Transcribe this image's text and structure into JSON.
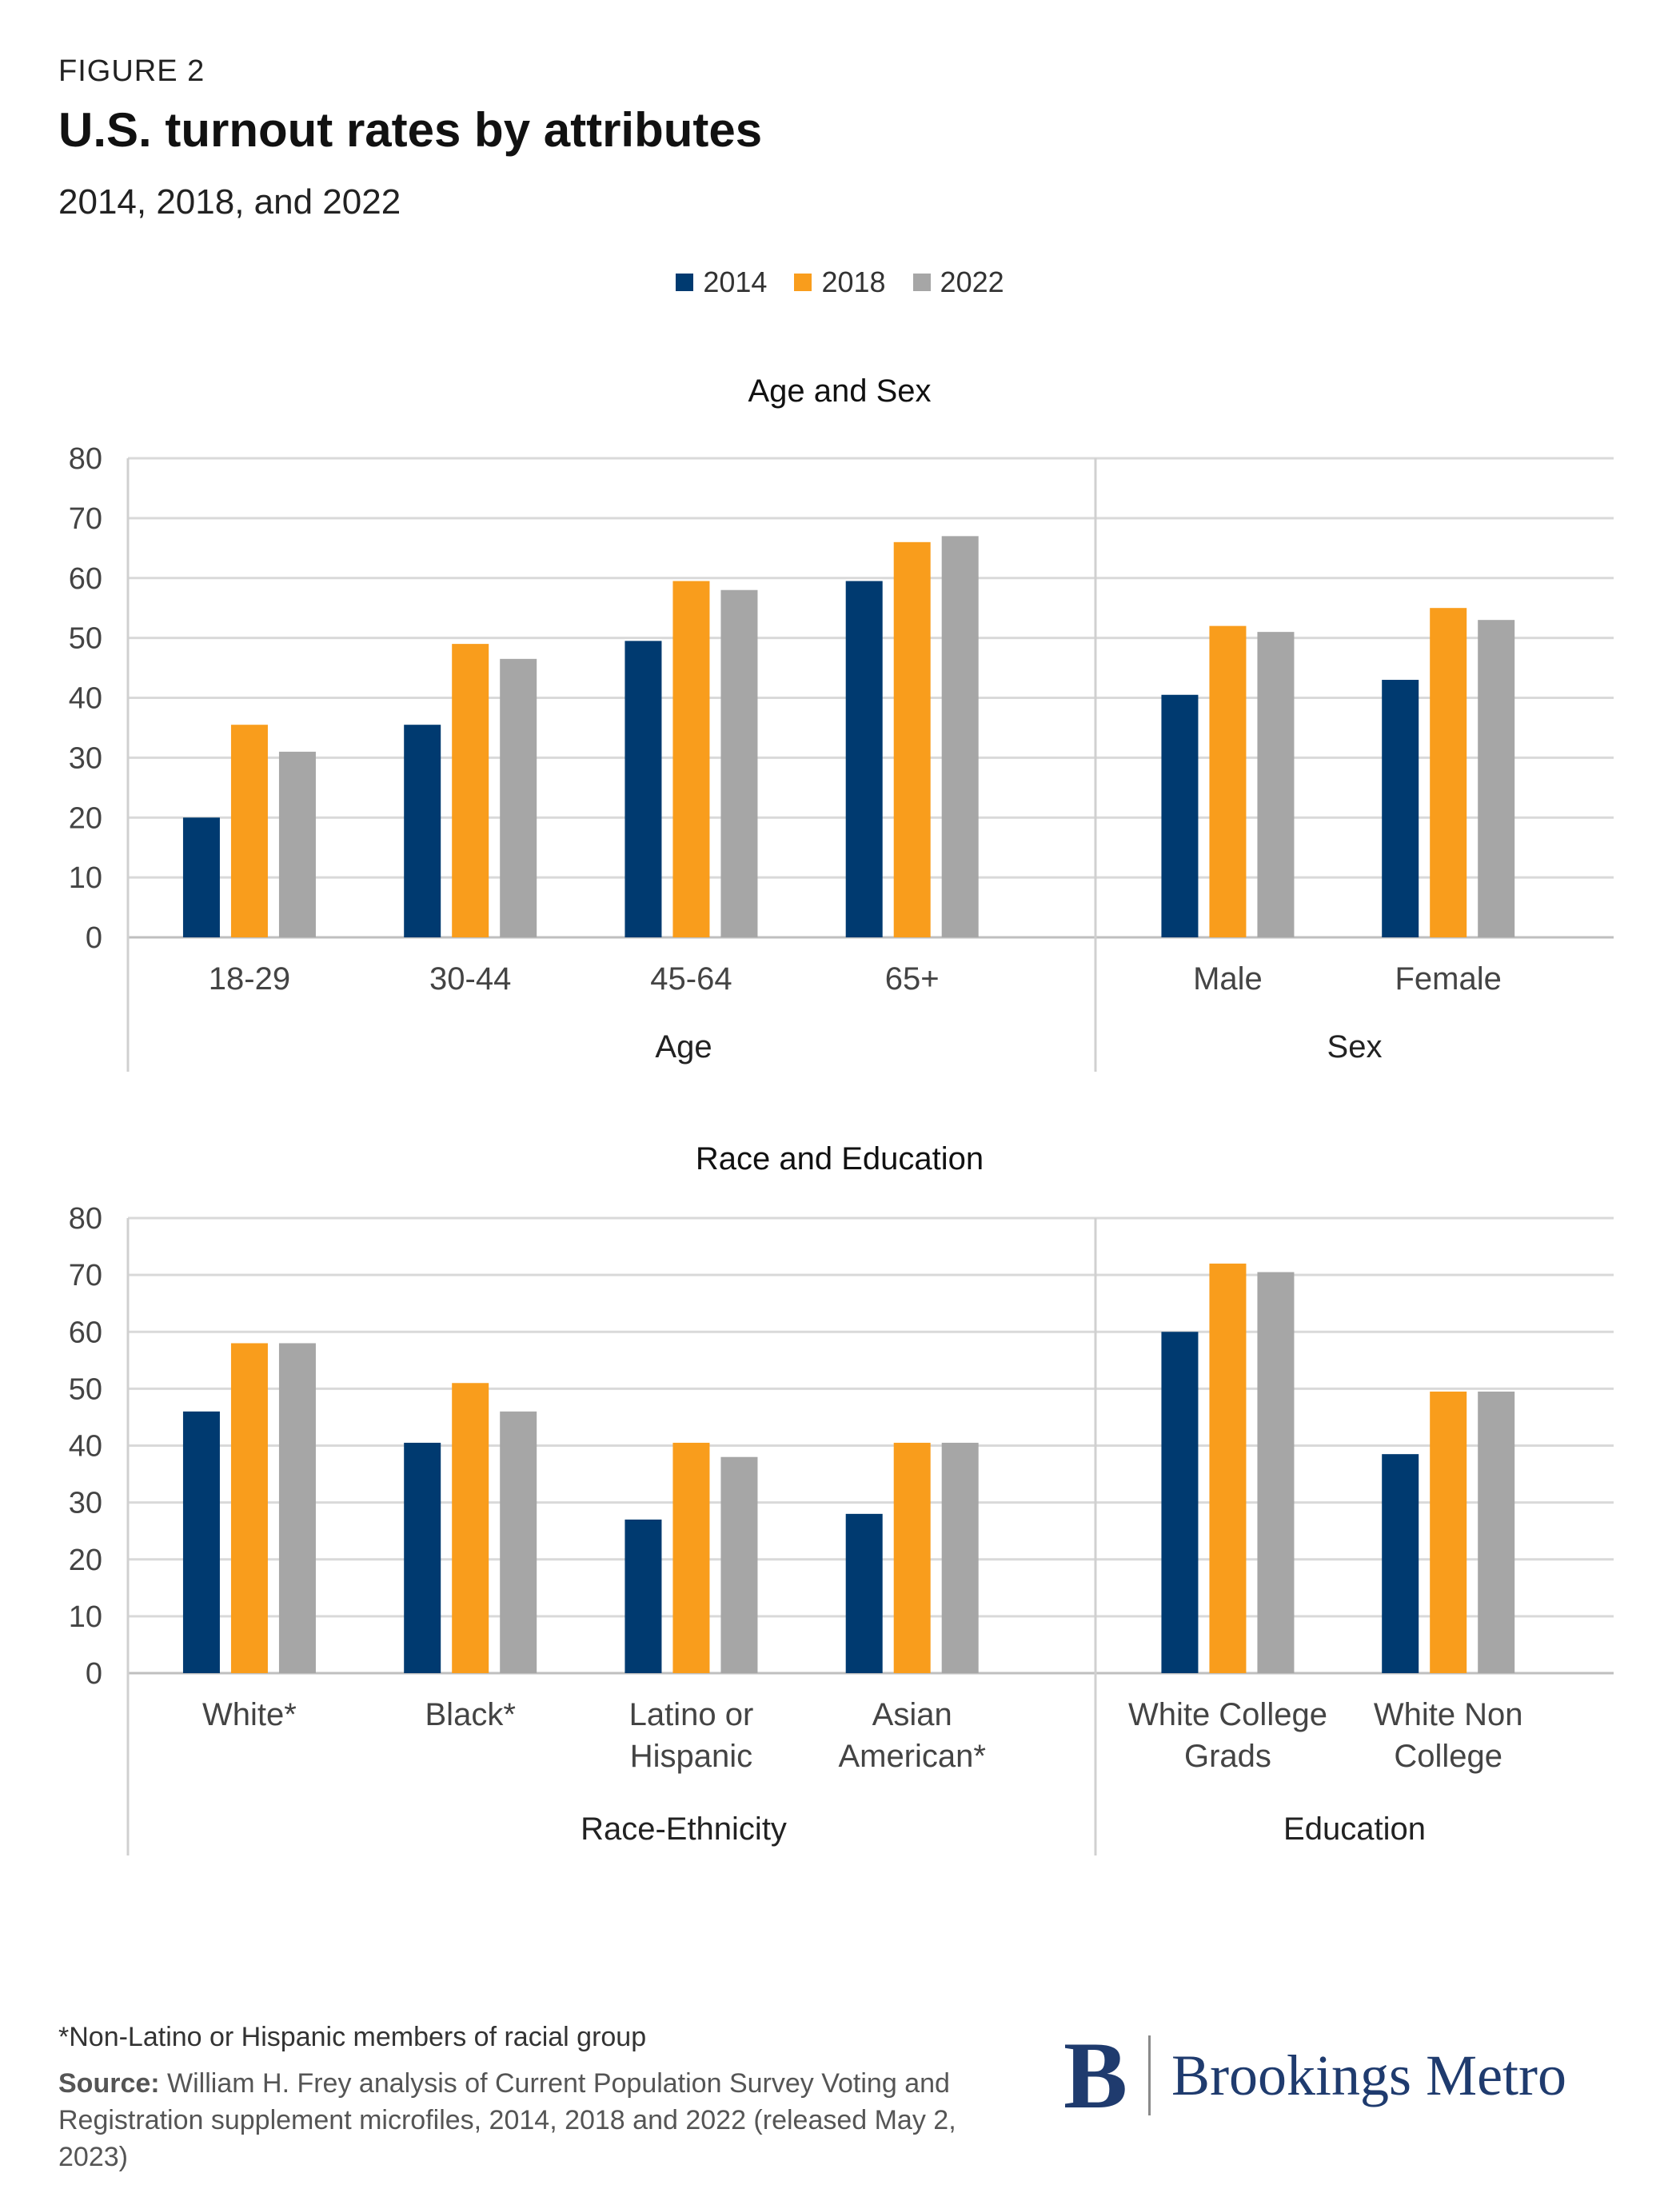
{
  "header": {
    "eyebrow": "FIGURE 2",
    "title": "U.S. turnout rates by attributes",
    "subtitle": "2014, 2018, and 2022"
  },
  "legend": [
    {
      "label": "2014",
      "color": "#003a70"
    },
    {
      "label": "2018",
      "color": "#f99d1c"
    },
    {
      "label": "2022",
      "color": "#a6a6a6"
    }
  ],
  "chart_data": [
    {
      "type": "bar",
      "title": "Age and Sex",
      "ylim": [
        0,
        80
      ],
      "yticks": [
        "0",
        "10",
        "20",
        "30",
        "40",
        "50",
        "60",
        "70",
        "80"
      ],
      "groups": [
        {
          "label": "Age",
          "categories": [
            "18-29",
            "30-44",
            "45-64",
            "65+"
          ]
        },
        {
          "label": "Sex",
          "categories": [
            "Male",
            "Female"
          ]
        }
      ],
      "series": [
        {
          "name": "2014",
          "values": [
            20,
            35.5,
            49.5,
            59.5,
            40.5,
            43
          ]
        },
        {
          "name": "2018",
          "values": [
            35.5,
            49,
            59.5,
            66,
            52,
            55
          ]
        },
        {
          "name": "2022",
          "values": [
            31,
            46.5,
            58,
            67,
            51,
            53
          ]
        }
      ]
    },
    {
      "type": "bar",
      "title": "Race and Education",
      "ylim": [
        0,
        80
      ],
      "yticks": [
        "0",
        "10",
        "20",
        "30",
        "40",
        "50",
        "60",
        "70",
        "80"
      ],
      "groups": [
        {
          "label": "Race-Ethnicity",
          "categories": [
            "White*",
            "Black*",
            "Latino or Hispanic",
            "Asian American*"
          ]
        },
        {
          "label": "Education",
          "categories": [
            "White College Grads",
            "White Non College"
          ]
        }
      ],
      "category_lines": [
        [
          "White*"
        ],
        [
          "Black*"
        ],
        [
          "Latino or",
          "Hispanic"
        ],
        [
          "Asian",
          "American*"
        ],
        [
          "White College",
          "Grads"
        ],
        [
          "White Non",
          "College"
        ]
      ],
      "series": [
        {
          "name": "2014",
          "values": [
            46,
            40.5,
            27,
            28,
            60,
            38.5
          ]
        },
        {
          "name": "2018",
          "values": [
            58,
            51,
            40.5,
            40.5,
            72,
            49.5
          ]
        },
        {
          "name": "2022",
          "values": [
            58,
            46,
            38,
            40.5,
            70.5,
            49.5
          ]
        }
      ]
    }
  ],
  "footer": {
    "footnote": "*Non-Latino or Hispanic members of racial group",
    "source_label": "Source:",
    "source_text": " William H. Frey analysis of Current Population Survey Voting and Registration supplement microfiles, 2014, 2018 and 2022 (released May 2, 2023)",
    "logo_mark": "B",
    "logo_text": "Brookings Metro"
  }
}
